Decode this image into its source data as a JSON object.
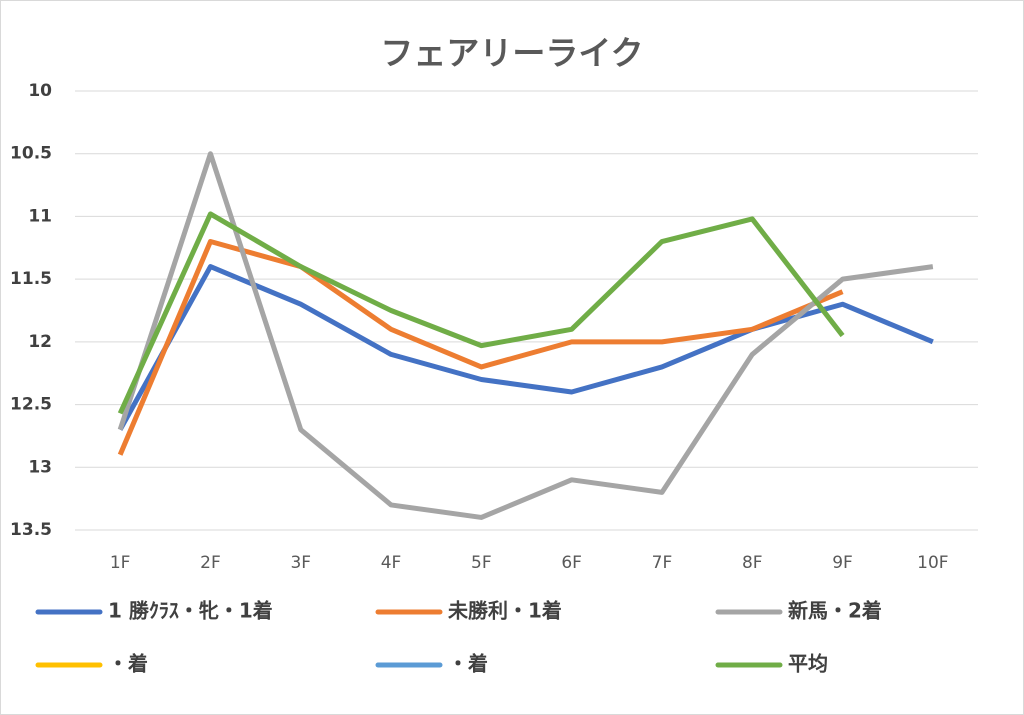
{
  "chart_data": {
    "type": "line",
    "title": "フェアリーライク",
    "categories": [
      "1F",
      "2F",
      "3F",
      "4F",
      "5F",
      "6F",
      "7F",
      "8F",
      "9F",
      "10F"
    ],
    "series": [
      {
        "name": "1 勝ｸﾗｽ・牝・1着",
        "color": "#4472c4",
        "values": [
          12.7,
          11.4,
          11.7,
          12.1,
          12.3,
          12.4,
          12.2,
          11.9,
          11.7,
          12.0
        ]
      },
      {
        "name": "未勝利・1着",
        "color": "#ed7d31",
        "values": [
          12.9,
          11.2,
          11.4,
          11.9,
          12.2,
          12.0,
          12.0,
          11.9,
          11.6,
          null
        ]
      },
      {
        "name": "新馬・2着",
        "color": "#a5a5a5",
        "values": [
          12.7,
          10.5,
          12.7,
          13.3,
          13.4,
          13.1,
          13.2,
          12.1,
          11.5,
          11.4
        ]
      },
      {
        "name": "・着",
        "color": "#ffc000",
        "values": [
          null,
          null,
          null,
          null,
          null,
          null,
          null,
          null,
          null,
          null
        ]
      },
      {
        "name": "・着",
        "color": "#5b9bd5",
        "values": [
          null,
          null,
          null,
          null,
          null,
          null,
          null,
          null,
          null,
          null
        ]
      },
      {
        "name": "平均",
        "color": "#70ad47",
        "values": [
          12.57,
          10.98,
          11.4,
          11.75,
          12.03,
          11.9,
          11.2,
          11.02,
          11.95,
          null
        ]
      }
    ],
    "ylim": [
      10,
      13.5
    ],
    "y_reversed": true,
    "yticks": [
      10,
      10.5,
      11,
      11.5,
      12,
      12.5,
      13,
      13.5
    ],
    "grid": true,
    "legend": "bottom"
  }
}
